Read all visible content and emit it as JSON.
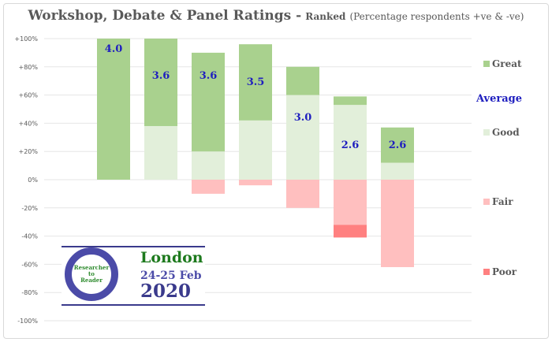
{
  "chart_data": {
    "type": "bar",
    "stacked": true,
    "title": "Workshop, Debate & Panel Ratings -",
    "subtitle_bold": "Ranked",
    "subtitle": "(Percentage respondents +ve & -ve)",
    "ylim": [
      -100,
      100
    ],
    "ytick_labels": [
      "+100%",
      "+80%",
      "+60%",
      "+40%",
      "+20%",
      "0%",
      "-20%",
      "-40%",
      "-60%",
      "-80%",
      "-100%"
    ],
    "yticks": [
      100,
      80,
      60,
      40,
      20,
      0,
      -20,
      -40,
      -60,
      -80,
      -100
    ],
    "grid": true,
    "legend_position": "right",
    "series": [
      {
        "name": "Great",
        "color": "#a9d18e",
        "values": [
          100,
          62,
          70,
          54,
          20,
          6,
          25
        ]
      },
      {
        "name": "Good",
        "color": "#e2efda",
        "values": [
          0,
          38,
          20,
          42,
          60,
          53,
          12
        ]
      },
      {
        "name": "Fair",
        "color": "#ffbfbf",
        "values": [
          0,
          0,
          -10,
          -4,
          -20,
          -32,
          -62
        ]
      },
      {
        "name": "Poor",
        "color": "#ff8080",
        "values": [
          0,
          0,
          0,
          0,
          0,
          -9,
          0
        ]
      }
    ],
    "average_label": "Average",
    "averages": [
      "4.0",
      "3.6",
      "3.6",
      "3.5",
      "3.0",
      "2.6",
      "2.6"
    ]
  },
  "logo": {
    "ring_text": [
      "Researcher",
      "to",
      "Reader"
    ],
    "city": "London",
    "dates": "24-25 Feb",
    "year": "2020"
  }
}
